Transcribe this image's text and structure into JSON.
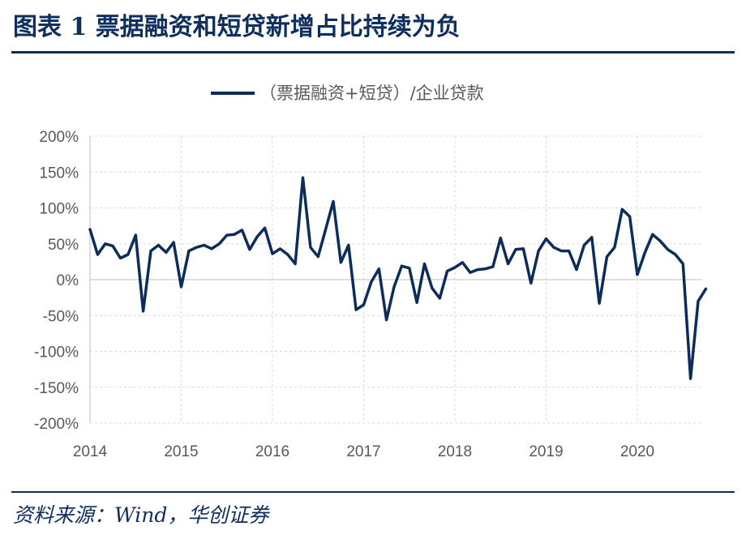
{
  "title": "图表 1 票据融资和短贷新增占比持续为负",
  "source": "资料来源：Wind，华创证券",
  "colors": {
    "title": "#0e2e5d",
    "line": "#0d2c5c",
    "grid": "#d9d9d9",
    "axis_text": "#595959"
  },
  "chart_data": {
    "type": "line",
    "title": "",
    "xlabel": "",
    "ylabel": "",
    "ylim": [
      -200,
      200
    ],
    "yticks": [
      -200,
      -150,
      -100,
      -50,
      0,
      50,
      100,
      150,
      200
    ],
    "ytick_labels": [
      "-200%",
      "-150%",
      "-100%",
      "-50%",
      "0%",
      "50%",
      "100%",
      "150%",
      "200%"
    ],
    "xticks": [
      "2014",
      "2015",
      "2016",
      "2017",
      "2018",
      "2019",
      "2020"
    ],
    "grid": true,
    "legend_position": "top-center",
    "series": [
      {
        "name": "（票据融资+短贷）/企业贷款",
        "x": [
          "2014-01",
          "2014-02",
          "2014-03",
          "2014-04",
          "2014-05",
          "2014-06",
          "2014-07",
          "2014-08",
          "2014-09",
          "2014-10",
          "2014-11",
          "2014-12",
          "2015-01",
          "2015-02",
          "2015-03",
          "2015-04",
          "2015-05",
          "2015-06",
          "2015-07",
          "2015-08",
          "2015-09",
          "2015-10",
          "2015-11",
          "2015-12",
          "2016-01",
          "2016-02",
          "2016-03",
          "2016-04",
          "2016-05",
          "2016-06",
          "2016-07",
          "2016-08",
          "2016-09",
          "2016-10",
          "2016-11",
          "2016-12",
          "2017-01",
          "2017-02",
          "2017-03",
          "2017-04",
          "2017-05",
          "2017-06",
          "2017-07",
          "2017-08",
          "2017-09",
          "2017-10",
          "2017-11",
          "2017-12",
          "2018-01",
          "2018-02",
          "2018-03",
          "2018-04",
          "2018-05",
          "2018-06",
          "2018-07",
          "2018-08",
          "2018-09",
          "2018-10",
          "2018-11",
          "2018-12",
          "2019-01",
          "2019-02",
          "2019-03",
          "2019-04",
          "2019-05",
          "2019-06",
          "2019-07",
          "2019-08",
          "2019-09",
          "2019-10",
          "2019-11",
          "2019-12",
          "2020-01",
          "2020-02",
          "2020-03",
          "2020-04",
          "2020-05",
          "2020-06",
          "2020-07",
          "2020-08",
          "2020-09",
          "2020-10"
        ],
        "values": [
          70,
          35,
          50,
          47,
          30,
          35,
          62,
          -44,
          40,
          48,
          38,
          52,
          -10,
          40,
          45,
          48,
          43,
          50,
          62,
          63,
          69,
          42,
          60,
          72,
          36,
          43,
          35,
          22,
          142,
          45,
          32,
          70,
          109,
          24,
          48,
          -42,
          -35,
          -3,
          15,
          -56,
          -10,
          19,
          16,
          -32,
          22,
          -12,
          -26,
          12,
          17,
          24,
          10,
          14,
          15,
          18,
          58,
          22,
          42,
          43,
          -5,
          40,
          57,
          45,
          40,
          40,
          14,
          48,
          59,
          -33,
          32,
          45,
          98,
          88,
          7,
          38,
          63,
          54,
          42,
          35,
          22,
          -138,
          -30,
          -13
        ]
      }
    ]
  }
}
